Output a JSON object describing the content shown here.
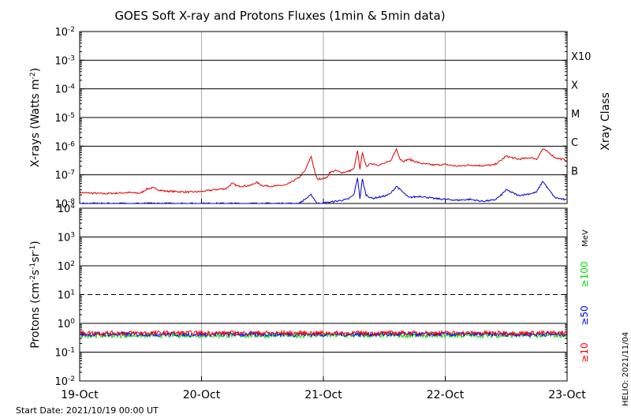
{
  "title": "GOES Soft X-ray and Protons Fluxes   (1min & 5min data)",
  "start_date": "Start Date: 2021/10/19 00:00 UT",
  "helio_stamp": "HELIO: 2021/11/04",
  "colors": {
    "xray_long": "#dd0000",
    "xray_short": "#0000cc",
    "p10": "#ff0000",
    "p50": "#0000ff",
    "p100": "#00dd00",
    "grid_vertical": "#aaaaaa",
    "axis": "#000000"
  },
  "chart_data": [
    {
      "type": "line",
      "name": "xray-panel",
      "ylabel_parts": {
        "main": "X-rays (Watts m",
        "sup": "-2",
        "close": ")"
      },
      "y_scale": "log",
      "ylim_exp": [
        -8,
        -2
      ],
      "ytick_exponents": [
        -8,
        -7,
        -6,
        -5,
        -4,
        -3,
        -2
      ],
      "x_categories": [
        "19-Oct",
        "20-Oct",
        "21-Oct",
        "22-Oct",
        "23-Oct"
      ],
      "xlim_days": [
        0,
        4
      ],
      "flare_class_label": "Xray Class",
      "flare_classes": [
        {
          "label": "B",
          "exp": -7
        },
        {
          "label": "C",
          "exp": -6
        },
        {
          "label": "M",
          "exp": -5
        },
        {
          "label": "X",
          "exp": -4
        },
        {
          "label": "X10",
          "exp": -3
        }
      ],
      "series": [
        {
          "color_key": "xray_long",
          "x": [
            0,
            0.1,
            0.2,
            0.3,
            0.4,
            0.5,
            0.55,
            0.6,
            0.65,
            0.7,
            0.8,
            0.9,
            1.0,
            1.1,
            1.2,
            1.25,
            1.3,
            1.4,
            1.45,
            1.5,
            1.6,
            1.7,
            1.75,
            1.8,
            1.85,
            1.9,
            1.93,
            1.95,
            2.03,
            2.05,
            2.1,
            2.15,
            2.2,
            2.25,
            2.28,
            2.3,
            2.32,
            2.35,
            2.4,
            2.45,
            2.5,
            2.55,
            2.6,
            2.63,
            2.66,
            2.7,
            2.8,
            2.9,
            3.0,
            3.1,
            3.2,
            3.3,
            3.4,
            3.45,
            3.5,
            3.6,
            3.7,
            3.75,
            3.8,
            3.85,
            3.9,
            4.0
          ],
          "y": [
            2.4e-08,
            2.3e-08,
            2.2e-08,
            2.3e-08,
            2.4e-08,
            2.3e-08,
            3.2e-08,
            3.5e-08,
            3e-08,
            2.7e-08,
            2.6e-08,
            2.5e-08,
            2.6e-08,
            3e-08,
            3.3e-08,
            5e-08,
            4e-08,
            4.2e-08,
            5.5e-08,
            4.2e-08,
            4e-08,
            4.5e-08,
            6e-08,
            8e-08,
            1.4e-07,
            4.5e-07,
            1.2e-07,
            7e-08,
            8e-08,
            1.2e-07,
            1.4e-07,
            1.2e-07,
            1.3e-07,
            1.6e-07,
            7e-07,
            1.5e-07,
            6e-07,
            2e-07,
            2.5e-07,
            2.2e-07,
            2.5e-07,
            3e-07,
            8e-07,
            3.5e-07,
            3e-07,
            3.5e-07,
            2.5e-07,
            2.2e-07,
            2.3e-07,
            2e-07,
            2.2e-07,
            2.1e-07,
            2.2e-07,
            3e-07,
            4.5e-07,
            3.5e-07,
            4e-07,
            3.5e-07,
            8e-07,
            6e-07,
            4e-07,
            3.2e-07
          ]
        },
        {
          "color_key": "xray_short",
          "x": [
            0,
            0.3,
            0.6,
            0.9,
            1.2,
            1.5,
            1.8,
            1.9,
            1.95,
            2.05,
            2.2,
            2.25,
            2.28,
            2.3,
            2.32,
            2.35,
            2.4,
            2.5,
            2.55,
            2.6,
            2.7,
            2.8,
            2.9,
            3.0,
            3.1,
            3.2,
            3.3,
            3.4,
            3.45,
            3.5,
            3.6,
            3.7,
            3.75,
            3.8,
            3.85,
            3.9,
            4.0
          ],
          "y": [
            1e-08,
            1e-08,
            1e-08,
            1e-08,
            1e-08,
            1e-08,
            1e-08,
            2e-08,
            1e-08,
            1.1e-08,
            1.4e-08,
            2e-08,
            8e-08,
            1.5e-08,
            7e-08,
            2e-08,
            1.5e-08,
            1.8e-08,
            2.2e-08,
            4e-08,
            1.6e-08,
            1.8e-08,
            1.5e-08,
            1.4e-08,
            1.3e-08,
            1.4e-08,
            1.2e-08,
            1.3e-08,
            1.8e-08,
            3e-08,
            1.9e-08,
            2.2e-08,
            2.5e-08,
            6e-08,
            3e-08,
            1.6e-08,
            1.3e-08
          ]
        }
      ]
    },
    {
      "type": "line",
      "name": "proton-panel",
      "ylabel_parts": {
        "main": "Protons (cm",
        "sup1": "-2",
        "mid1": "s",
        "sup2": "-1",
        "mid2": "sr",
        "sup3": "-1",
        "close": ")"
      },
      "y_scale": "log",
      "ylim_exp": [
        -2,
        4
      ],
      "ytick_exponents": [
        -2,
        -1,
        0,
        1,
        2,
        3,
        4
      ],
      "threshold": 10,
      "x_categories": [
        "19-Oct",
        "20-Oct",
        "21-Oct",
        "22-Oct",
        "23-Oct"
      ],
      "xlim_days": [
        0,
        4
      ],
      "energy_unit": "MeV",
      "series": [
        {
          "name": "≥100",
          "color_key": "p100",
          "level": 0.38
        },
        {
          "name": "≥50",
          "color_key": "p50",
          "level": 0.42
        },
        {
          "name": "≥10",
          "color_key": "p10",
          "level": 0.46
        }
      ]
    }
  ]
}
